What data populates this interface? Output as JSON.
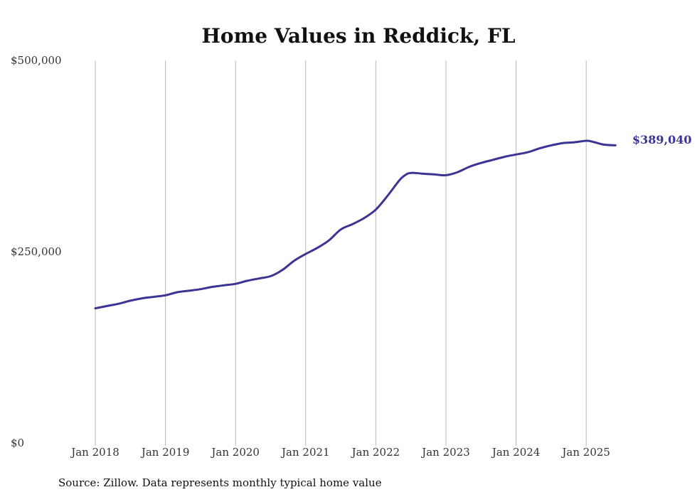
{
  "chart_data": {
    "type": "line",
    "title": "Home Values in Reddick, FL",
    "source_note": "Source: Zillow. Data represents monthly typical home value",
    "ylim": [
      0,
      500000
    ],
    "y_ticks": [
      {
        "value": 0,
        "label": "$0"
      },
      {
        "value": 250000,
        "label": "$250,000"
      },
      {
        "value": 500000,
        "label": "$500,000"
      }
    ],
    "x_ticks": [
      {
        "value": "2018-01",
        "label": "Jan 2018"
      },
      {
        "value": "2019-01",
        "label": "Jan 2019"
      },
      {
        "value": "2020-01",
        "label": "Jan 2020"
      },
      {
        "value": "2021-01",
        "label": "Jan 2021"
      },
      {
        "value": "2022-01",
        "label": "Jan 2022"
      },
      {
        "value": "2023-01",
        "label": "Jan 2023"
      },
      {
        "value": "2024-01",
        "label": "Jan 2024"
      },
      {
        "value": "2025-01",
        "label": "Jan 2025"
      }
    ],
    "grid": {
      "vertical": true,
      "horizontal": false
    },
    "line_color": "#3b3494",
    "end_label": "$389,040",
    "series": [
      {
        "x": [
          "2018-01",
          "2018-03",
          "2018-05",
          "2018-07",
          "2018-09",
          "2018-11",
          "2019-01",
          "2019-03",
          "2019-05",
          "2019-07",
          "2019-09",
          "2019-11",
          "2020-01",
          "2020-03",
          "2020-05",
          "2020-07",
          "2020-09",
          "2020-11",
          "2021-01",
          "2021-03",
          "2021-05",
          "2021-07",
          "2021-09",
          "2021-11",
          "2022-01",
          "2022-03",
          "2022-05",
          "2022-06",
          "2022-07",
          "2022-09",
          "2022-11",
          "2023-01",
          "2023-03",
          "2023-05",
          "2023-07",
          "2023-09",
          "2023-11",
          "2024-01",
          "2024-03",
          "2024-05",
          "2024-07",
          "2024-09",
          "2024-11",
          "2025-01",
          "2025-02",
          "2025-04",
          "2025-06"
        ],
        "values": [
          176000,
          179000,
          182000,
          186000,
          189000,
          191000,
          193000,
          197000,
          199000,
          201000,
          204000,
          206000,
          208000,
          212000,
          215000,
          218000,
          226000,
          238000,
          247000,
          255000,
          265000,
          279000,
          286000,
          294000,
          305000,
          323000,
          343000,
          350000,
          353000,
          352000,
          351000,
          350000,
          354000,
          361000,
          366000,
          370000,
          374000,
          377000,
          380000,
          385000,
          389000,
          392000,
          393000,
          395000,
          394000,
          390000,
          389040
        ]
      }
    ]
  }
}
